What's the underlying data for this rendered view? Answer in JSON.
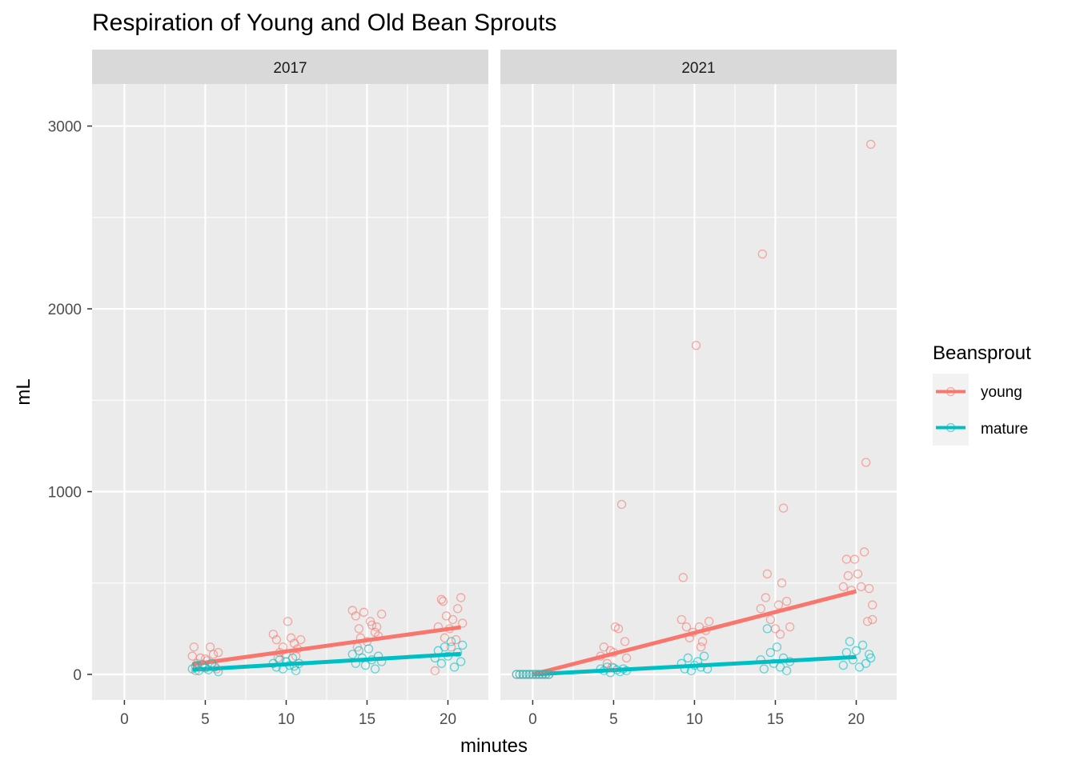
{
  "chart_data": {
    "type": "scatter",
    "title": "Respiration of Young and Old Bean Sprouts",
    "xlabel": "minutes",
    "ylabel": "mL",
    "xlim": [
      -2,
      22.5
    ],
    "ylim": [
      -140,
      3230
    ],
    "x_ticks": [
      0,
      5,
      10,
      15,
      20
    ],
    "y_ticks": [
      0,
      1000,
      2000,
      3000
    ],
    "grid": true,
    "legend": {
      "title": "Beansprout",
      "placement": "right",
      "entries": [
        {
          "label": "young",
          "color": "#F8766D"
        },
        {
          "label": "mature",
          "color": "#00BFC4"
        }
      ]
    },
    "panels": [
      {
        "label": "2017",
        "series": [
          {
            "name": "young",
            "color": "#F8766D",
            "fit": {
              "x": [
                4.2,
                20.8
              ],
              "y": [
                55,
                258
              ]
            },
            "points": [
              [
                4.2,
                100
              ],
              [
                4.3,
                150
              ],
              [
                4.5,
                60
              ],
              [
                4.7,
                90
              ],
              [
                4.9,
                40
              ],
              [
                5.1,
                75
              ],
              [
                5.3,
                150
              ],
              [
                5.5,
                110
              ],
              [
                5.7,
                30
              ],
              [
                5.8,
                120
              ],
              [
                4.4,
                20
              ],
              [
                5.0,
                85
              ],
              [
                9.2,
                220
              ],
              [
                9.4,
                190
              ],
              [
                9.6,
                120
              ],
              [
                9.8,
                150
              ],
              [
                10.0,
                110
              ],
              [
                10.1,
                290
              ],
              [
                10.3,
                200
              ],
              [
                10.5,
                170
              ],
              [
                10.7,
                140
              ],
              [
                10.9,
                190
              ],
              [
                9.5,
                90
              ],
              [
                10.6,
                100
              ],
              [
                14.1,
                350
              ],
              [
                14.3,
                320
              ],
              [
                14.5,
                250
              ],
              [
                14.6,
                200
              ],
              [
                14.8,
                340
              ],
              [
                15.0,
                180
              ],
              [
                15.2,
                290
              ],
              [
                15.3,
                270
              ],
              [
                15.5,
                230
              ],
              [
                15.7,
                210
              ],
              [
                15.9,
                330
              ],
              [
                14.4,
                150
              ],
              [
                15.6,
                260
              ],
              [
                19.2,
                20
              ],
              [
                19.4,
                260
              ],
              [
                19.6,
                410
              ],
              [
                19.7,
                400
              ],
              [
                19.9,
                320
              ],
              [
                20.1,
                250
              ],
              [
                20.3,
                300
              ],
              [
                20.5,
                190
              ],
              [
                20.6,
                360
              ],
              [
                20.8,
                420
              ],
              [
                20.9,
                280
              ],
              [
                20.2,
                150
              ],
              [
                19.8,
                200
              ]
            ]
          },
          {
            "name": "mature",
            "color": "#00BFC4",
            "fit": {
              "x": [
                4.2,
                20.8
              ],
              "y": [
                25,
                112
              ]
            },
            "points": [
              [
                4.2,
                30
              ],
              [
                4.4,
                45
              ],
              [
                4.6,
                20
              ],
              [
                4.8,
                55
              ],
              [
                5.0,
                35
              ],
              [
                5.2,
                25
              ],
              [
                5.4,
                60
              ],
              [
                5.6,
                40
              ],
              [
                5.8,
                15
              ],
              [
                4.5,
                50
              ],
              [
                9.2,
                60
              ],
              [
                9.4,
                40
              ],
              [
                9.6,
                80
              ],
              [
                9.8,
                30
              ],
              [
                10.0,
                70
              ],
              [
                10.2,
                50
              ],
              [
                10.4,
                90
              ],
              [
                10.6,
                20
              ],
              [
                10.8,
                60
              ],
              [
                10.5,
                45
              ],
              [
                14.1,
                110
              ],
              [
                14.3,
                60
              ],
              [
                14.5,
                130
              ],
              [
                14.7,
                90
              ],
              [
                14.9,
                50
              ],
              [
                15.1,
                140
              ],
              [
                15.3,
                80
              ],
              [
                15.5,
                30
              ],
              [
                15.7,
                100
              ],
              [
                15.9,
                70
              ],
              [
                19.2,
                90
              ],
              [
                19.4,
                130
              ],
              [
                19.6,
                60
              ],
              [
                19.8,
                150
              ],
              [
                20.0,
                100
              ],
              [
                20.2,
                180
              ],
              [
                20.4,
                40
              ],
              [
                20.6,
                120
              ],
              [
                20.8,
                70
              ],
              [
                20.9,
                160
              ]
            ]
          }
        ]
      },
      {
        "label": "2021",
        "series": [
          {
            "name": "young",
            "color": "#F8766D",
            "fit": {
              "x": [
                0,
                20
              ],
              "y": [
                0,
                455
              ]
            },
            "points": [
              [
                -1.0,
                0
              ],
              [
                -0.8,
                0
              ],
              [
                -0.6,
                0
              ],
              [
                -0.4,
                0
              ],
              [
                -0.2,
                0
              ],
              [
                0.0,
                0
              ],
              [
                0.2,
                0
              ],
              [
                0.4,
                0
              ],
              [
                0.6,
                0
              ],
              [
                0.8,
                0
              ],
              [
                1.0,
                0
              ],
              [
                4.2,
                100
              ],
              [
                4.4,
                150
              ],
              [
                4.6,
                60
              ],
              [
                4.8,
                130
              ],
              [
                5.1,
                260
              ],
              [
                5.3,
                250
              ],
              [
                5.5,
                930
              ],
              [
                5.7,
                180
              ],
              [
                5.8,
                90
              ],
              [
                5.0,
                120
              ],
              [
                4.9,
                40
              ],
              [
                9.2,
                300
              ],
              [
                9.3,
                530
              ],
              [
                9.5,
                260
              ],
              [
                9.7,
                200
              ],
              [
                9.9,
                230
              ],
              [
                10.1,
                1800
              ],
              [
                10.3,
                260
              ],
              [
                10.5,
                180
              ],
              [
                10.7,
                240
              ],
              [
                10.9,
                290
              ],
              [
                10.4,
                150
              ],
              [
                14.1,
                360
              ],
              [
                14.2,
                2300
              ],
              [
                14.4,
                420
              ],
              [
                14.5,
                550
              ],
              [
                14.7,
                300
              ],
              [
                15.0,
                250
              ],
              [
                15.2,
                380
              ],
              [
                15.4,
                500
              ],
              [
                15.5,
                910
              ],
              [
                15.7,
                400
              ],
              [
                15.9,
                260
              ],
              [
                15.3,
                220
              ],
              [
                19.2,
                480
              ],
              [
                19.4,
                630
              ],
              [
                19.5,
                540
              ],
              [
                19.7,
                460
              ],
              [
                19.9,
                630
              ],
              [
                20.1,
                550
              ],
              [
                20.3,
                480
              ],
              [
                20.5,
                670
              ],
              [
                20.6,
                1160
              ],
              [
                20.8,
                470
              ],
              [
                20.9,
                2900
              ],
              [
                21.0,
                300
              ],
              [
                20.7,
                290
              ],
              [
                21.0,
                380
              ]
            ]
          },
          {
            "name": "mature",
            "color": "#00BFC4",
            "fit": {
              "x": [
                0,
                20
              ],
              "y": [
                0,
                95
              ]
            },
            "points": [
              [
                -1.0,
                0
              ],
              [
                -0.8,
                0
              ],
              [
                -0.6,
                0
              ],
              [
                -0.4,
                0
              ],
              [
                -0.2,
                0
              ],
              [
                0.0,
                0
              ],
              [
                0.2,
                0
              ],
              [
                0.4,
                0
              ],
              [
                0.6,
                0
              ],
              [
                0.8,
                0
              ],
              [
                1.0,
                0
              ],
              [
                4.2,
                30
              ],
              [
                4.4,
                20
              ],
              [
                4.6,
                40
              ],
              [
                4.8,
                10
              ],
              [
                5.0,
                35
              ],
              [
                5.2,
                25
              ],
              [
                5.4,
                15
              ],
              [
                5.6,
                30
              ],
              [
                5.8,
                20
              ],
              [
                9.2,
                60
              ],
              [
                9.4,
                30
              ],
              [
                9.6,
                90
              ],
              [
                9.8,
                20
              ],
              [
                10.0,
                50
              ],
              [
                10.2,
                70
              ],
              [
                10.4,
                40
              ],
              [
                10.6,
                100
              ],
              [
                10.8,
                30
              ],
              [
                14.1,
                80
              ],
              [
                14.3,
                30
              ],
              [
                14.5,
                250
              ],
              [
                14.7,
                120
              ],
              [
                14.9,
                60
              ],
              [
                15.1,
                150
              ],
              [
                15.3,
                40
              ],
              [
                15.5,
                90
              ],
              [
                15.7,
                20
              ],
              [
                15.9,
                70
              ],
              [
                19.2,
                50
              ],
              [
                19.4,
                120
              ],
              [
                19.6,
                180
              ],
              [
                19.8,
                80
              ],
              [
                20.0,
                130
              ],
              [
                20.2,
                40
              ],
              [
                20.4,
                160
              ],
              [
                20.6,
                60
              ],
              [
                20.8,
                110
              ],
              [
                20.9,
                90
              ]
            ]
          }
        ]
      }
    ]
  }
}
